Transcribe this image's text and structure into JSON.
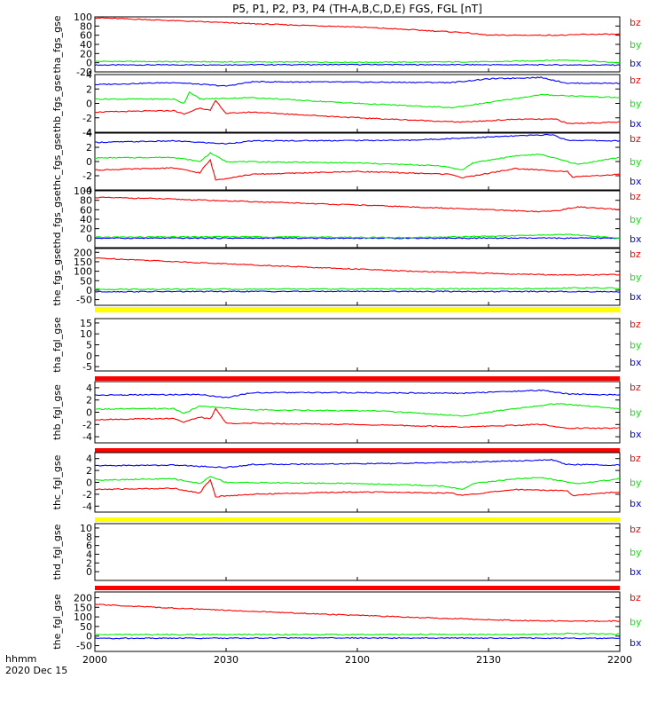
{
  "colors": {
    "bx": "#0000ff",
    "by": "#00ee00",
    "bz": "#ff0000",
    "yellow": "#ffff00",
    "axes": "#000000"
  },
  "chart_data": {
    "type": "line",
    "title": "P5, P1, P2, P3, P4 (TH-A,B,C,D,E) FGS, FGL [nT]",
    "x_axis": {
      "ticks": [
        2000,
        2030,
        2100,
        2130,
        2200
      ],
      "tick_labels": [
        "2000",
        "2030",
        "2100",
        "2130",
        "2200"
      ],
      "range": [
        2000,
        2200
      ],
      "label_line1": "hhmm",
      "label_line2": "2020 Dec 15"
    },
    "legend": [
      "bz",
      "by",
      "bx"
    ],
    "panels": [
      {
        "ylabel": "tha_fgs_gse",
        "ylim": [
          -20,
          100
        ],
        "yticks": [
          -20,
          0,
          20,
          40,
          60,
          80,
          100
        ],
        "series": {
          "bz": [
            [
              0,
              98
            ],
            [
              0.1,
              94
            ],
            [
              0.3,
              85
            ],
            [
              0.5,
              78
            ],
            [
              0.7,
              66
            ],
            [
              0.75,
              60
            ],
            [
              0.9,
              60
            ],
            [
              0.93,
              62
            ],
            [
              1,
              62
            ]
          ],
          "by": [
            [
              0,
              3
            ],
            [
              0.2,
              2
            ],
            [
              0.5,
              1
            ],
            [
              0.75,
              2
            ],
            [
              0.9,
              6
            ],
            [
              1,
              0
            ]
          ],
          "bx": [
            [
              0,
              -5
            ],
            [
              0.5,
              -4
            ],
            [
              1,
              -5
            ]
          ]
        }
      },
      {
        "ylabel": "thb_fgs_gse",
        "ylim": [
          -4,
          4
        ],
        "yticks": [
          -4,
          -2,
          0,
          2,
          4
        ],
        "series": {
          "bz": [
            [
              0,
              -1.2
            ],
            [
              0.15,
              -1.0
            ],
            [
              0.17,
              -1.5
            ],
            [
              0.2,
              -0.6
            ],
            [
              0.22,
              -1.0
            ],
            [
              0.23,
              0.4
            ],
            [
              0.25,
              -1.4
            ],
            [
              0.3,
              -1.2
            ],
            [
              0.5,
              -2.0
            ],
            [
              0.7,
              -2.6
            ],
            [
              0.8,
              -2.2
            ],
            [
              0.88,
              -2.2
            ],
            [
              0.9,
              -2.8
            ],
            [
              1,
              -2.6
            ]
          ],
          "by": [
            [
              0,
              0.6
            ],
            [
              0.15,
              0.6
            ],
            [
              0.17,
              0.0
            ],
            [
              0.18,
              1.6
            ],
            [
              0.2,
              0.6
            ],
            [
              0.3,
              0.8
            ],
            [
              0.5,
              0.0
            ],
            [
              0.68,
              -0.6
            ],
            [
              0.72,
              -0.2
            ],
            [
              0.85,
              1.2
            ],
            [
              1,
              0.8
            ]
          ],
          "bx": [
            [
              0,
              2.6
            ],
            [
              0.15,
              2.9
            ],
            [
              0.25,
              2.4
            ],
            [
              0.3,
              3.0
            ],
            [
              0.68,
              2.9
            ],
            [
              0.75,
              3.4
            ],
            [
              0.85,
              3.6
            ],
            [
              0.9,
              2.8
            ],
            [
              1,
              2.8
            ]
          ]
        }
      },
      {
        "ylabel": "thc_fgs_gse",
        "ylim": [
          -4,
          4
        ],
        "yticks": [
          -4,
          -2,
          0,
          2,
          4
        ],
        "series": {
          "bz": [
            [
              0,
              -1.2
            ],
            [
              0.15,
              -0.9
            ],
            [
              0.2,
              -1.6
            ],
            [
              0.21,
              -0.6
            ],
            [
              0.22,
              0.2
            ],
            [
              0.23,
              -2.6
            ],
            [
              0.3,
              -1.8
            ],
            [
              0.5,
              -1.4
            ],
            [
              0.68,
              -1.8
            ],
            [
              0.7,
              -2.3
            ],
            [
              0.8,
              -1.0
            ],
            [
              0.9,
              -1.4
            ],
            [
              0.91,
              -2.2
            ],
            [
              1,
              -1.8
            ]
          ],
          "by": [
            [
              0,
              0.5
            ],
            [
              0.15,
              0.6
            ],
            [
              0.2,
              0.0
            ],
            [
              0.22,
              1.2
            ],
            [
              0.25,
              0.0
            ],
            [
              0.5,
              -0.2
            ],
            [
              0.66,
              -0.6
            ],
            [
              0.7,
              -1.2
            ],
            [
              0.72,
              -0.2
            ],
            [
              0.8,
              0.8
            ],
            [
              0.85,
              1.0
            ],
            [
              0.92,
              -0.4
            ],
            [
              1,
              0.6
            ]
          ],
          "bx": [
            [
              0,
              2.7
            ],
            [
              0.15,
              2.9
            ],
            [
              0.25,
              2.5
            ],
            [
              0.3,
              2.9
            ],
            [
              0.6,
              3.0
            ],
            [
              0.8,
              3.6
            ],
            [
              0.87,
              3.8
            ],
            [
              0.9,
              3.0
            ],
            [
              1,
              2.9
            ]
          ]
        }
      },
      {
        "ylabel": "thd_fgs_gse",
        "ylim": [
          -20,
          100
        ],
        "yticks": [
          0,
          20,
          40,
          60,
          80,
          100
        ],
        "series": {
          "bz": [
            [
              0,
              86
            ],
            [
              0.1,
              84
            ],
            [
              0.3,
              77
            ],
            [
              0.5,
              70
            ],
            [
              0.7,
              62
            ],
            [
              0.85,
              56
            ],
            [
              0.88,
              58
            ],
            [
              0.92,
              66
            ],
            [
              1,
              60
            ]
          ],
          "by": [
            [
              0,
              2
            ],
            [
              0.3,
              3
            ],
            [
              0.6,
              1
            ],
            [
              0.8,
              5
            ],
            [
              0.9,
              8
            ],
            [
              1,
              0
            ]
          ],
          "bx": [
            [
              0,
              0
            ],
            [
              0.5,
              0
            ],
            [
              1,
              0
            ]
          ]
        }
      },
      {
        "ylabel": "the_fgs_gse",
        "ylim": [
          -80,
          220
        ],
        "yticks": [
          -50,
          0,
          50,
          100,
          150,
          200
        ],
        "series": {
          "bz": [
            [
              0,
              170
            ],
            [
              0.2,
              145
            ],
            [
              0.4,
              122
            ],
            [
              0.6,
              100
            ],
            [
              0.8,
              85
            ],
            [
              0.9,
              80
            ],
            [
              1,
              82
            ]
          ],
          "by": [
            [
              0,
              5
            ],
            [
              0.5,
              6
            ],
            [
              0.85,
              8
            ],
            [
              0.9,
              12
            ],
            [
              1,
              10
            ]
          ],
          "bx": [
            [
              0,
              -8
            ],
            [
              0.5,
              -6
            ],
            [
              1,
              -8
            ]
          ]
        }
      },
      {
        "ylabel": "tha_fgl_gse",
        "ylim": [
          -7,
          17
        ],
        "yticks": [
          -5,
          0,
          5,
          10,
          15
        ],
        "bar_top": "yellow",
        "bar_bottom": "bz",
        "series": null
      },
      {
        "ylabel": "thb_fgl_gse",
        "ylim": [
          -5,
          5
        ],
        "yticks": [
          -4,
          -2,
          0,
          2,
          4
        ],
        "bar_bottom": "bz",
        "series": {
          "bz": [
            [
              0,
              -1.2
            ],
            [
              0.15,
              -1.0
            ],
            [
              0.17,
              -1.6
            ],
            [
              0.2,
              -0.8
            ],
            [
              0.22,
              -1.1
            ],
            [
              0.23,
              0.6
            ],
            [
              0.25,
              -1.8
            ],
            [
              0.3,
              -1.8
            ],
            [
              0.5,
              -2.0
            ],
            [
              0.7,
              -2.4
            ],
            [
              0.85,
              -2.0
            ],
            [
              0.9,
              -2.6
            ],
            [
              1,
              -2.6
            ]
          ],
          "by": [
            [
              0,
              0.5
            ],
            [
              0.15,
              0.6
            ],
            [
              0.17,
              -0.2
            ],
            [
              0.2,
              1.0
            ],
            [
              0.3,
              0.4
            ],
            [
              0.55,
              0.2
            ],
            [
              0.7,
              -0.6
            ],
            [
              0.8,
              0.6
            ],
            [
              0.88,
              1.4
            ],
            [
              1,
              0.6
            ]
          ],
          "bx": [
            [
              0,
              2.8
            ],
            [
              0.2,
              2.9
            ],
            [
              0.25,
              2.4
            ],
            [
              0.3,
              3.2
            ],
            [
              0.5,
              3.2
            ],
            [
              0.7,
              3.1
            ],
            [
              0.85,
              3.6
            ],
            [
              0.9,
              3.0
            ],
            [
              1,
              2.8
            ]
          ]
        }
      },
      {
        "ylabel": "thc_fgl_gse",
        "ylim": [
          -5,
          5
        ],
        "yticks": [
          -4,
          -2,
          0,
          2,
          4
        ],
        "bar_bottom": "yellow",
        "series": {
          "bz": [
            [
              0,
              -1.2
            ],
            [
              0.15,
              -1.0
            ],
            [
              0.2,
              -1.8
            ],
            [
              0.21,
              -0.6
            ],
            [
              0.22,
              0.4
            ],
            [
              0.23,
              -2.4
            ],
            [
              0.3,
              -2.0
            ],
            [
              0.5,
              -1.6
            ],
            [
              0.68,
              -1.8
            ],
            [
              0.7,
              -2.2
            ],
            [
              0.8,
              -1.2
            ],
            [
              0.9,
              -1.4
            ],
            [
              0.91,
              -2.2
            ],
            [
              1,
              -1.6
            ]
          ],
          "by": [
            [
              0,
              0.4
            ],
            [
              0.15,
              0.6
            ],
            [
              0.2,
              -0.2
            ],
            [
              0.22,
              1.0
            ],
            [
              0.25,
              0.0
            ],
            [
              0.5,
              -0.2
            ],
            [
              0.66,
              -0.6
            ],
            [
              0.7,
              -1.2
            ],
            [
              0.72,
              -0.2
            ],
            [
              0.8,
              0.6
            ],
            [
              0.85,
              0.8
            ],
            [
              0.92,
              -0.2
            ],
            [
              1,
              0.6
            ]
          ],
          "bx": [
            [
              0,
              2.8
            ],
            [
              0.15,
              2.9
            ],
            [
              0.25,
              2.5
            ],
            [
              0.3,
              3.0
            ],
            [
              0.6,
              3.2
            ],
            [
              0.8,
              3.6
            ],
            [
              0.87,
              3.8
            ],
            [
              0.9,
              3.0
            ],
            [
              1,
              2.9
            ]
          ]
        }
      },
      {
        "ylabel": "thd_fgl_gse",
        "ylim": [
          -2,
          11
        ],
        "yticks": [
          0,
          2,
          4,
          6,
          8,
          10
        ],
        "bar_bottom": "bz",
        "series": null
      },
      {
        "ylabel": "the_fgl_gse",
        "ylim": [
          -80,
          230
        ],
        "yticks": [
          -50,
          0,
          50,
          100,
          150,
          200
        ],
        "series": {
          "bz": [
            [
              0,
              165
            ],
            [
              0.2,
              140
            ],
            [
              0.4,
              118
            ],
            [
              0.6,
              98
            ],
            [
              0.8,
              82
            ],
            [
              0.9,
              78
            ],
            [
              1,
              78
            ]
          ],
          "by": [
            [
              0,
              8
            ],
            [
              0.5,
              8
            ],
            [
              0.85,
              10
            ],
            [
              0.9,
              14
            ],
            [
              1,
              10
            ]
          ],
          "bx": [
            [
              0,
              -12
            ],
            [
              0.5,
              -10
            ],
            [
              1,
              -12
            ]
          ]
        }
      }
    ]
  }
}
